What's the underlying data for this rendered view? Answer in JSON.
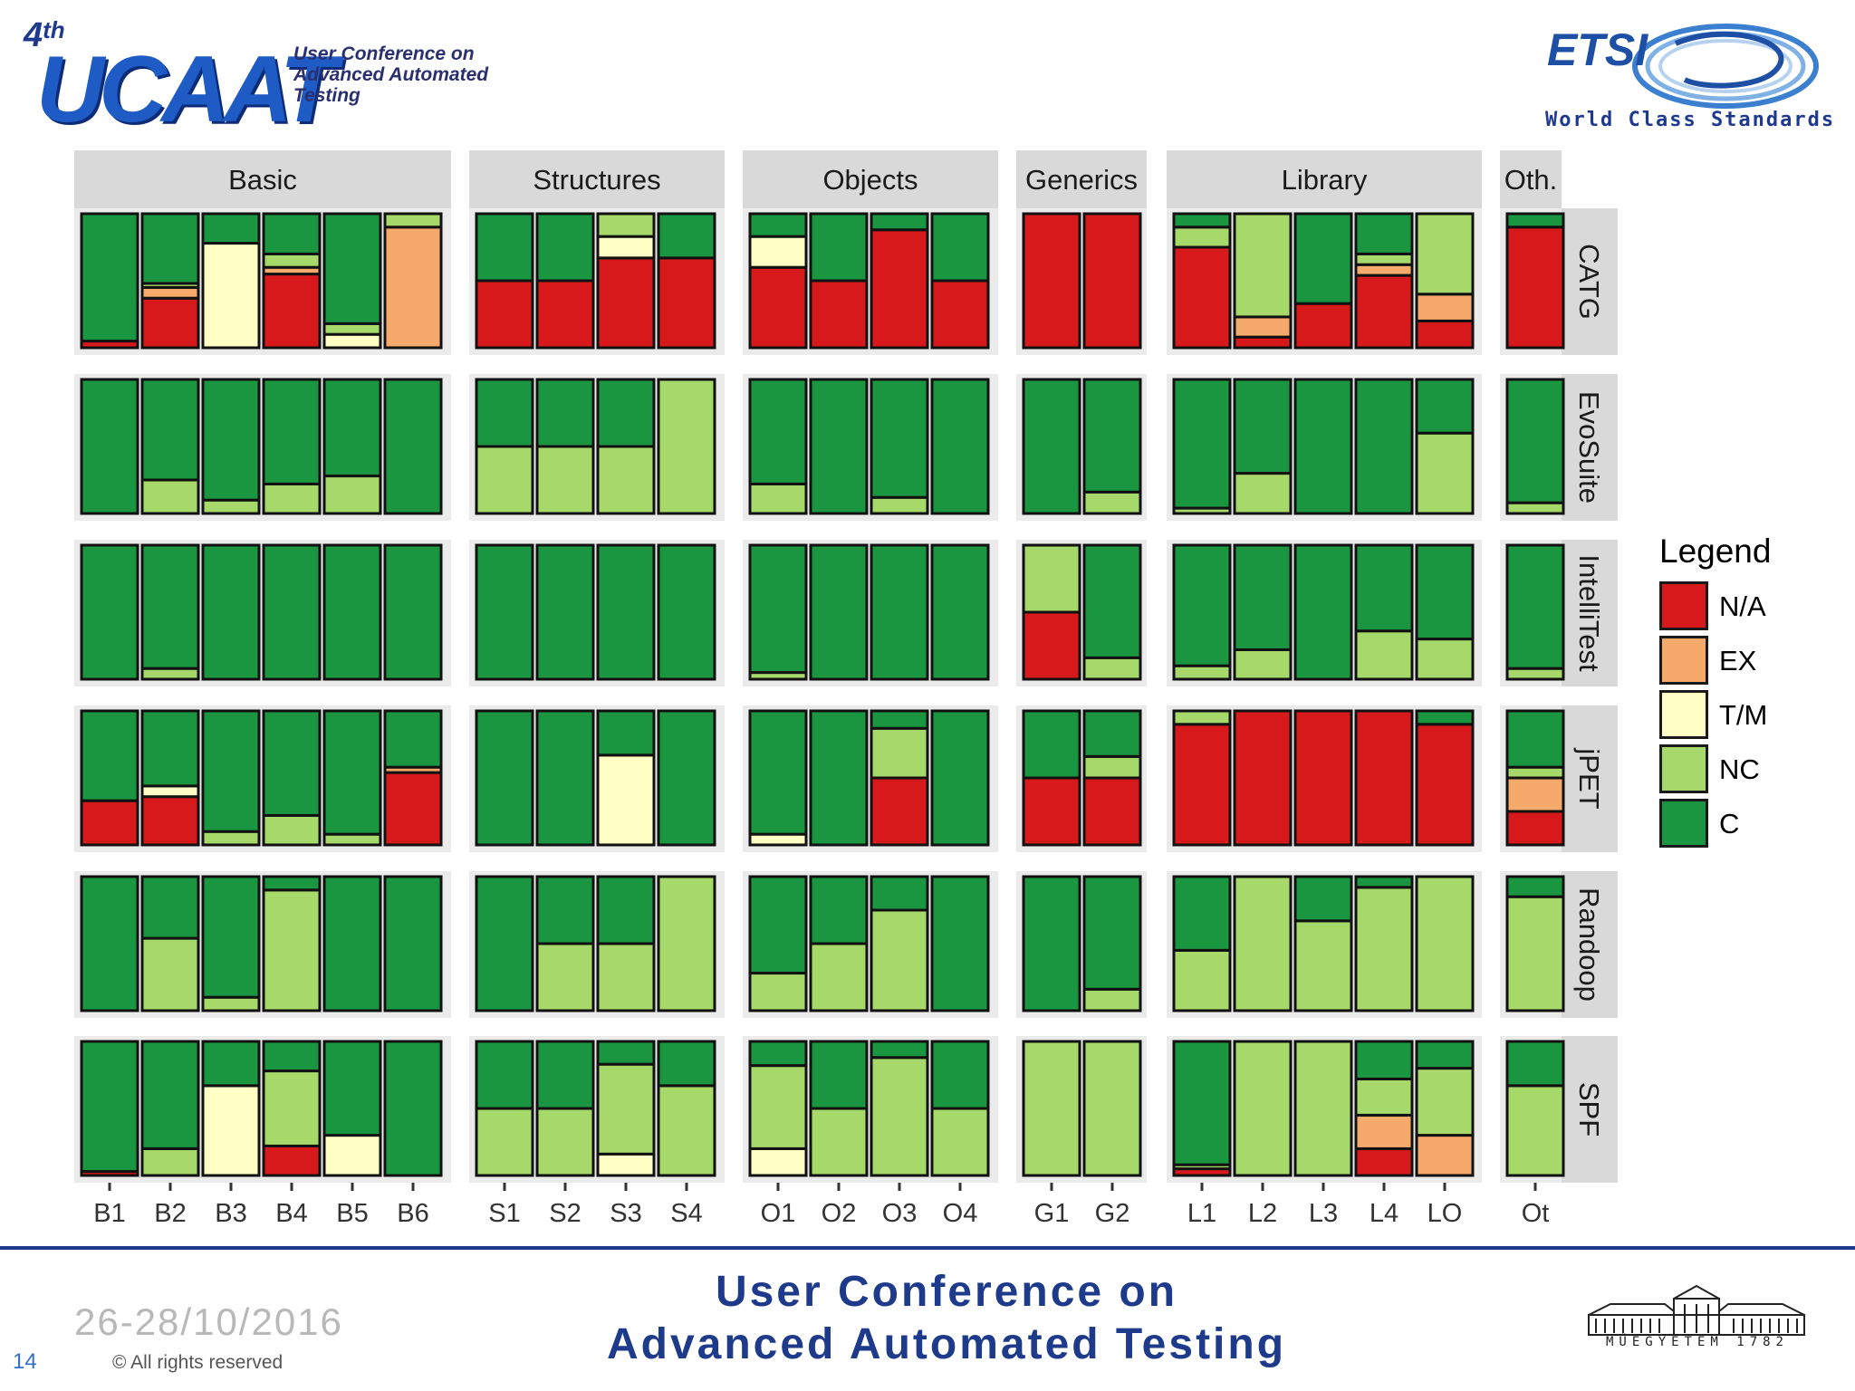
{
  "header": {
    "ucaat_edition": "4",
    "ucaat_edition_suffix": "th",
    "ucaat_logo_text": "UCAAT",
    "ucaat_subtitle": "User Conference on Advanced Automated Testing",
    "etsi_logo_text": "ETSI",
    "etsi_tagline": "World Class Standards"
  },
  "chart_data": {
    "type": "stacked-bar-facet-grid",
    "title": "",
    "ylim": [
      0,
      1
    ],
    "columns": [
      {
        "name": "Basic",
        "classes": [
          "B1",
          "B2",
          "B3",
          "B4",
          "B5",
          "B6"
        ]
      },
      {
        "name": "Structures",
        "classes": [
          "S1",
          "S2",
          "S3",
          "S4"
        ]
      },
      {
        "name": "Objects",
        "classes": [
          "O1",
          "O2",
          "O3",
          "O4"
        ]
      },
      {
        "name": "Generics",
        "classes": [
          "G1",
          "G2"
        ]
      },
      {
        "name": "Library",
        "classes": [
          "L1",
          "L2",
          "L3",
          "L4",
          "LO"
        ]
      },
      {
        "name": "Oth.",
        "classes": [
          "Ot"
        ]
      }
    ],
    "rows": [
      "CATG",
      "EvoSuite",
      "IntelliTest",
      "jPET",
      "Randoop",
      "SPF"
    ],
    "legend": {
      "title": "Legend",
      "items": [
        {
          "key": "NA",
          "label": "N/A",
          "color": "#d7191c"
        },
        {
          "key": "EX",
          "label": "EX",
          "color": "#f5a96a"
        },
        {
          "key": "TM",
          "label": "T/M",
          "color": "#ffffc5"
        },
        {
          "key": "NC",
          "label": "NC",
          "color": "#a6d96a"
        },
        {
          "key": "C",
          "label": "C",
          "color": "#1a9641"
        }
      ]
    },
    "data": {
      "CATG": {
        "B1": {
          "NA": 0.05,
          "C": 0.95
        },
        "B2": {
          "NA": 0.37,
          "EX": 0.08,
          "NC": 0.03,
          "C": 0.52
        },
        "B3": {
          "TM": 0.78,
          "C": 0.22
        },
        "B4": {
          "NA": 0.55,
          "EX": 0.05,
          "NC": 0.1,
          "C": 0.3
        },
        "B5": {
          "TM": 0.1,
          "NC": 0.08,
          "C": 0.82
        },
        "B6": {
          "EX": 0.9,
          "NC": 0.1
        },
        "S1": {
          "NA": 0.5,
          "C": 0.5
        },
        "S2": {
          "NA": 0.5,
          "C": 0.5
        },
        "S3": {
          "NA": 0.67,
          "TM": 0.16,
          "NC": 0.17
        },
        "S4": {
          "NA": 0.67,
          "C": 0.33
        },
        "O1": {
          "NA": 0.6,
          "TM": 0.23,
          "C": 0.17
        },
        "O2": {
          "NA": 0.5,
          "C": 0.5
        },
        "O3": {
          "NA": 0.88,
          "C": 0.12
        },
        "O4": {
          "NA": 0.5,
          "C": 0.5
        },
        "G1": {
          "NA": 1.0
        },
        "G2": {
          "NA": 1.0
        },
        "L1": {
          "NA": 0.75,
          "NC": 0.15,
          "C": 0.1
        },
        "L2": {
          "NA": 0.08,
          "EX": 0.15,
          "NC": 0.77
        },
        "L3": {
          "NA": 0.33,
          "C": 0.67
        },
        "L4": {
          "NA": 0.54,
          "EX": 0.08,
          "NC": 0.08,
          "C": 0.3
        },
        "LO": {
          "NA": 0.2,
          "EX": 0.2,
          "NC": 0.6
        },
        "Ot": {
          "NA": 0.9,
          "C": 0.1
        }
      },
      "EvoSuite": {
        "B1": {
          "C": 1.0
        },
        "B2": {
          "NC": 0.25,
          "C": 0.75
        },
        "B3": {
          "NC": 0.1,
          "C": 0.9
        },
        "B4": {
          "NC": 0.22,
          "C": 0.78
        },
        "B5": {
          "NC": 0.28,
          "C": 0.72
        },
        "B6": {
          "C": 1.0
        },
        "S1": {
          "NC": 0.5,
          "C": 0.5
        },
        "S2": {
          "NC": 0.5,
          "C": 0.5
        },
        "S3": {
          "NC": 0.5,
          "C": 0.5
        },
        "S4": {
          "NC": 1.0
        },
        "O1": {
          "NC": 0.22,
          "C": 0.78
        },
        "O2": {
          "C": 1.0
        },
        "O3": {
          "NC": 0.12,
          "C": 0.88
        },
        "O4": {
          "C": 1.0
        },
        "G1": {
          "C": 1.0
        },
        "G2": {
          "NC": 0.16,
          "C": 0.84
        },
        "L1": {
          "NC": 0.04,
          "C": 0.96
        },
        "L2": {
          "NC": 0.3,
          "C": 0.7
        },
        "L3": {
          "C": 1.0
        },
        "L4": {
          "C": 1.0
        },
        "LO": {
          "NC": 0.6,
          "C": 0.4
        },
        "Ot": {
          "NC": 0.08,
          "C": 0.92
        }
      },
      "IntelliTest": {
        "B1": {
          "C": 1.0
        },
        "B2": {
          "NC": 0.08,
          "C": 0.92
        },
        "B3": {
          "C": 1.0
        },
        "B4": {
          "C": 1.0
        },
        "B5": {
          "C": 1.0
        },
        "B6": {
          "C": 1.0
        },
        "S1": {
          "C": 1.0
        },
        "S2": {
          "C": 1.0
        },
        "S3": {
          "C": 1.0
        },
        "S4": {
          "C": 1.0
        },
        "O1": {
          "NC": 0.05,
          "C": 0.95
        },
        "O2": {
          "C": 1.0
        },
        "O3": {
          "C": 1.0
        },
        "O4": {
          "C": 1.0
        },
        "G1": {
          "NA": 0.5,
          "NC": 0.5
        },
        "G2": {
          "NC": 0.16,
          "C": 0.84
        },
        "L1": {
          "NC": 0.1,
          "C": 0.9
        },
        "L2": {
          "NC": 0.22,
          "C": 0.78
        },
        "L3": {
          "C": 1.0
        },
        "L4": {
          "NC": 0.36,
          "C": 0.64
        },
        "LO": {
          "NC": 0.3,
          "C": 0.7
        },
        "Ot": {
          "NC": 0.08,
          "C": 0.92
        }
      },
      "jPET": {
        "B1": {
          "NA": 0.33,
          "C": 0.67
        },
        "B2": {
          "NA": 0.36,
          "TM": 0.08,
          "C": 0.56
        },
        "B3": {
          "NC": 0.1,
          "C": 0.9
        },
        "B4": {
          "NC": 0.22,
          "C": 0.78
        },
        "B5": {
          "NC": 0.08,
          "C": 0.92
        },
        "B6": {
          "NA": 0.54,
          "EX": 0.04,
          "C": 0.42
        },
        "S1": {
          "C": 1.0
        },
        "S2": {
          "C": 1.0
        },
        "S3": {
          "TM": 0.67,
          "C": 0.33
        },
        "S4": {
          "C": 1.0
        },
        "O1": {
          "TM": 0.08,
          "C": 0.92
        },
        "O2": {
          "C": 1.0
        },
        "O3": {
          "NA": 0.5,
          "NC": 0.37,
          "C": 0.13
        },
        "O4": {
          "C": 1.0
        },
        "G1": {
          "NA": 0.5,
          "C": 0.5
        },
        "G2": {
          "NA": 0.5,
          "NC": 0.16,
          "C": 0.34
        },
        "L1": {
          "NA": 0.9,
          "NC": 0.1
        },
        "L2": {
          "NA": 1.0
        },
        "L3": {
          "NA": 1.0
        },
        "L4": {
          "NA": 1.0
        },
        "LO": {
          "NA": 0.9,
          "C": 0.1
        },
        "Ot": {
          "NA": 0.25,
          "EX": 0.25,
          "NC": 0.08,
          "C": 0.42
        }
      },
      "Randoop": {
        "B1": {
          "C": 1.0
        },
        "B2": {
          "NC": 0.54,
          "C": 0.46
        },
        "B3": {
          "NC": 0.1,
          "C": 0.9
        },
        "B4": {
          "NC": 0.9,
          "C": 0.1
        },
        "B5": {
          "C": 1.0
        },
        "B6": {
          "C": 1.0
        },
        "S1": {
          "C": 1.0
        },
        "S2": {
          "NC": 0.5,
          "C": 0.5
        },
        "S3": {
          "NC": 0.5,
          "C": 0.5
        },
        "S4": {
          "NC": 1.0
        },
        "O1": {
          "NC": 0.28,
          "C": 0.72
        },
        "O2": {
          "NC": 0.5,
          "C": 0.5
        },
        "O3": {
          "NC": 0.75,
          "C": 0.25
        },
        "O4": {
          "C": 1.0
        },
        "G1": {
          "C": 1.0
        },
        "G2": {
          "NC": 0.16,
          "C": 0.84
        },
        "L1": {
          "NC": 0.45,
          "C": 0.55
        },
        "L2": {
          "NC": 1.0
        },
        "L3": {
          "NC": 0.67,
          "C": 0.33
        },
        "L4": {
          "NC": 0.92,
          "C": 0.08
        },
        "LO": {
          "NC": 1.0
        },
        "Ot": {
          "NC": 0.85,
          "C": 0.15
        }
      },
      "SPF": {
        "B1": {
          "NA": 0.03,
          "C": 0.97
        },
        "B2": {
          "NC": 0.2,
          "C": 0.8
        },
        "B3": {
          "TM": 0.67,
          "C": 0.33
        },
        "B4": {
          "NA": 0.22,
          "NC": 0.56,
          "C": 0.22
        },
        "B5": {
          "TM": 0.3,
          "C": 0.7
        },
        "B6": {
          "C": 1.0
        },
        "S1": {
          "NC": 0.5,
          "C": 0.5
        },
        "S2": {
          "NC": 0.5,
          "C": 0.5
        },
        "S3": {
          "TM": 0.16,
          "NC": 0.67,
          "C": 0.17
        },
        "S4": {
          "NC": 0.67,
          "C": 0.33
        },
        "O1": {
          "TM": 0.2,
          "NC": 0.62,
          "C": 0.18
        },
        "O2": {
          "NC": 0.5,
          "C": 0.5
        },
        "O3": {
          "NC": 0.88,
          "C": 0.12
        },
        "O4": {
          "NC": 0.5,
          "C": 0.5
        },
        "G1": {
          "NC": 1.0
        },
        "G2": {
          "NC": 1.0
        },
        "L1": {
          "NA": 0.05,
          "NC": 0.03,
          "C": 0.92
        },
        "L2": {
          "NC": 1.0
        },
        "L3": {
          "NC": 1.0
        },
        "L4": {
          "NA": 0.2,
          "EX": 0.25,
          "NC": 0.27,
          "C": 0.28
        },
        "LO": {
          "EX": 0.3,
          "NC": 0.5,
          "C": 0.2
        },
        "Ot": {
          "NC": 0.67,
          "C": 0.33
        }
      }
    }
  },
  "footer": {
    "date": "26-28/10/2016",
    "page_number": "14",
    "copyright": "© All rights reserved",
    "conference_line1": "User Conference on",
    "conference_line2": "Advanced Automated Testing",
    "university_caption": "MŰEGYETEM 1782"
  }
}
